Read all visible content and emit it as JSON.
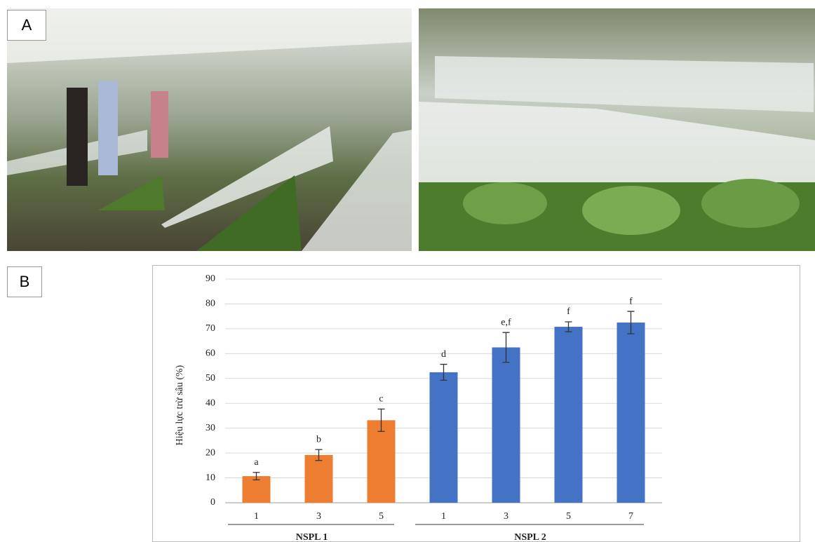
{
  "panels": {
    "a": "A",
    "b": "B"
  },
  "chart_data": {
    "type": "bar",
    "ylabel": "Hiệu lực trừ sâu (%)",
    "ylim": [
      0,
      90
    ],
    "yticks": [
      0,
      10,
      20,
      30,
      40,
      50,
      60,
      70,
      80,
      90
    ],
    "grid": true,
    "groups": [
      {
        "name": "NSPL 1",
        "color": "#ed7d31",
        "categories": [
          "1",
          "3",
          "5"
        ],
        "values": [
          10.7,
          19.2,
          33.2
        ],
        "errors": [
          1.5,
          2.2,
          4.5
        ],
        "annotations": [
          "a",
          "b",
          "c"
        ]
      },
      {
        "name": "NSPL 2",
        "color": "#4472c4",
        "categories": [
          "1",
          "3",
          "5",
          "7"
        ],
        "values": [
          52.5,
          62.5,
          70.8,
          72.5
        ],
        "errors": [
          3.2,
          6,
          2,
          4.5
        ],
        "annotations": [
          "d",
          "e,f",
          "f",
          "f"
        ]
      }
    ]
  }
}
